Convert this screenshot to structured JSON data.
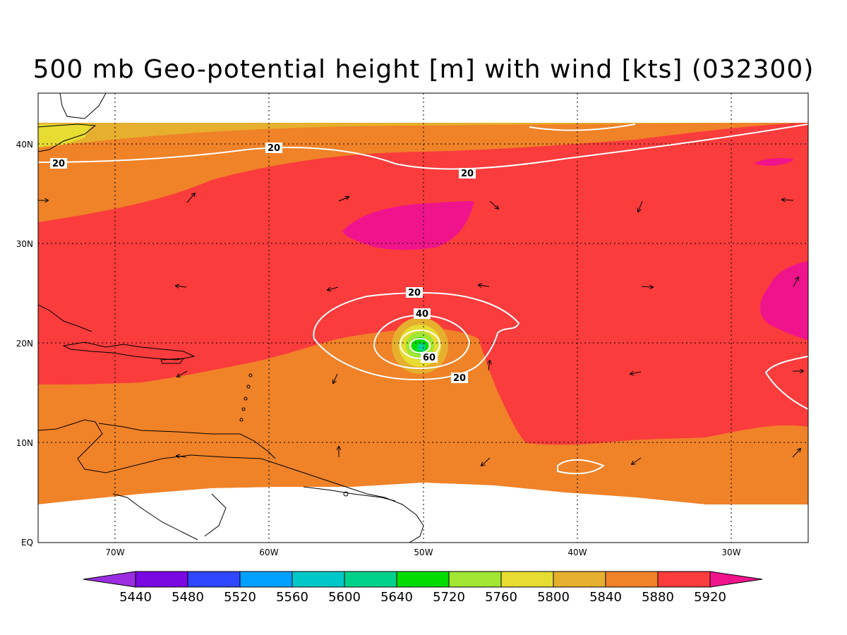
{
  "title": "500 mb Geo-potential height [m] with wind [kts] (032300)",
  "map": {
    "lon_labels": [
      "70W",
      "60W",
      "50W",
      "40W",
      "30W"
    ],
    "lat_labels": [
      "EQ",
      "10N",
      "20N",
      "30N",
      "40N"
    ],
    "contour_labels": [
      "20",
      "20",
      "20",
      "20",
      "40",
      "60",
      "20"
    ],
    "feature": "tropical cyclone circulation near 20N 50W"
  },
  "colorbar": {
    "labels": [
      "5440",
      "5480",
      "5520",
      "5560",
      "5600",
      "5640",
      "5720",
      "5760",
      "5800",
      "5840",
      "5880",
      "5920"
    ],
    "colors": [
      "#9a2ee0",
      "#7a08e0",
      "#2e46ff",
      "#00a0ff",
      "#00c8c8",
      "#00d28c",
      "#00dc00",
      "#a0e632",
      "#e6dc32",
      "#e6af2d",
      "#f08228",
      "#fa3c3c",
      "#f0148c"
    ]
  },
  "shading_colors": {
    "h5840": "#e6af2d",
    "h5800": "#e6dc32",
    "h5880": "#f08228",
    "h5920": "#fa3c3c",
    "h5960": "#f0148c",
    "h5760": "#a0e632",
    "h5720": "#00dc00",
    "h5640": "#00d28c"
  }
}
